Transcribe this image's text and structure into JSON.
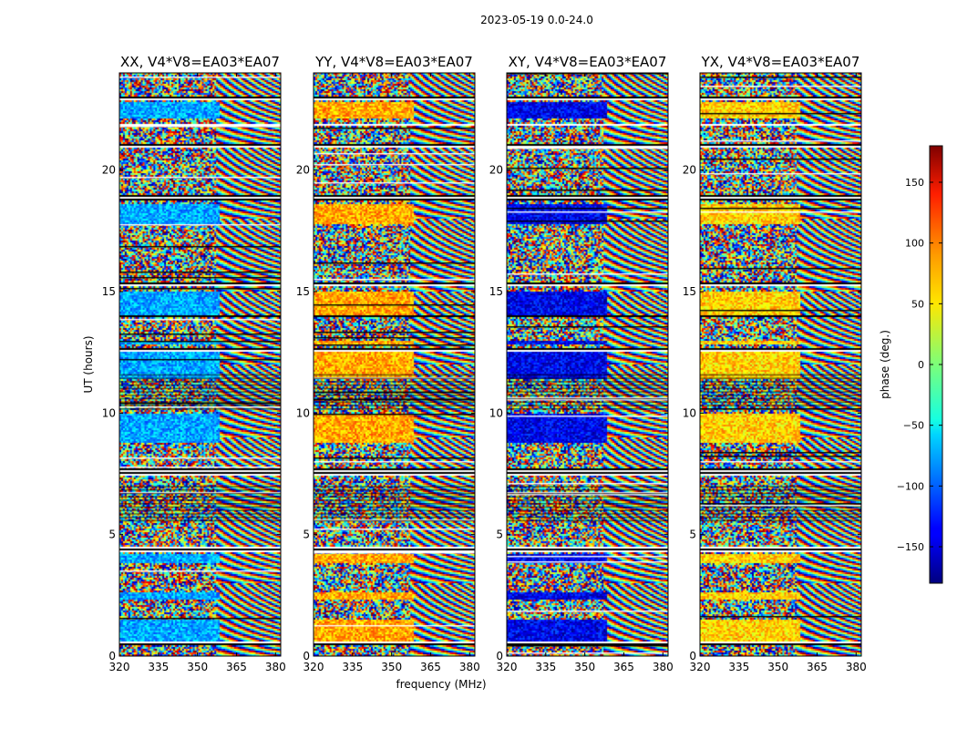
{
  "figure": {
    "suptitle": "2023-05-19 0.0-24.0",
    "xlabel": "frequency (MHz)",
    "ylabel": "UT (hours)",
    "colorbar_label": "phase (deg.)"
  },
  "chart_data": {
    "type": "heatmap",
    "title": "2023-05-19 0.0-24.0",
    "xlabel": "frequency (MHz)",
    "ylabel": "UT (hours)",
    "xlim": [
      320,
      382
    ],
    "ylim": [
      0,
      24
    ],
    "xticks": [
      320,
      335,
      350,
      365,
      380
    ],
    "yticks": [
      0,
      5,
      10,
      15,
      20
    ],
    "panels": [
      {
        "title": "XX, V4*V8=EA03*EA07",
        "polarization": "XX",
        "base_phase": -75
      },
      {
        "title": "YY, V4*V8=EA03*EA07",
        "polarization": "YY",
        "base_phase": 75
      },
      {
        "title": "XY, V4*V8=EA03*EA07",
        "polarization": "XY",
        "base_phase": -140
      },
      {
        "title": "YX, V4*V8=EA03*EA07",
        "polarization": "YX",
        "base_phase": 60
      }
    ],
    "coherent_bands": [
      {
        "t0": 0.5,
        "t1": 1.5
      },
      {
        "t0": 2.3,
        "t1": 2.6
      },
      {
        "t0": 3.8,
        "t1": 4.2
      },
      {
        "t0": 8.8,
        "t1": 10.0
      },
      {
        "t0": 11.4,
        "t1": 12.6
      },
      {
        "t0": 12.8,
        "t1": 13.0
      },
      {
        "t0": 14.0,
        "t1": 15.0
      },
      {
        "t0": 17.8,
        "t1": 18.6
      },
      {
        "t0": 22.1,
        "t1": 22.8
      }
    ],
    "flagged_bands": [
      {
        "t0": 0.45,
        "t1": 0.6
      },
      {
        "t0": 4.3,
        "t1": 4.5
      },
      {
        "t0": 7.4,
        "t1": 7.7
      },
      {
        "t0": 12.55,
        "t1": 12.7
      },
      {
        "t0": 13.95,
        "t1": 14.05
      },
      {
        "t0": 15.2,
        "t1": 15.35
      },
      {
        "t0": 18.75,
        "t1": 18.95
      },
      {
        "t0": 20.9,
        "t1": 21.05
      },
      {
        "t0": 22.85,
        "t1": 23.0
      },
      {
        "t0": 21.8,
        "t1": 21.9
      }
    ],
    "colorbar": {
      "min": -180,
      "max": 180,
      "ticks": [
        150,
        100,
        50,
        0,
        -50,
        -100,
        -150
      ],
      "tick_labels": [
        "150",
        "100",
        "50",
        "0",
        "−50",
        "−100",
        "−150"
      ],
      "colormap": "jet"
    }
  }
}
